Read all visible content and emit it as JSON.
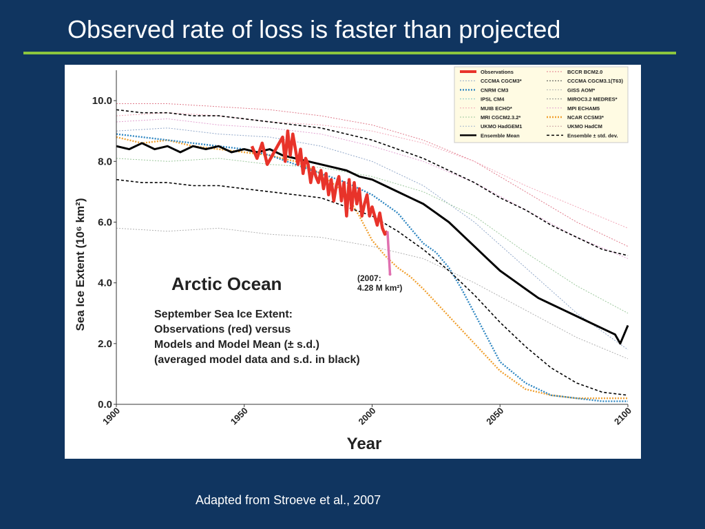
{
  "slide": {
    "title": "Observed rate of loss is faster than projected",
    "credit": "Adapted from Stroeve et al., 2007",
    "colors": {
      "background": "#103560",
      "rule": "#8cc63f",
      "text": "#ffffff"
    }
  },
  "chart_data": {
    "type": "line",
    "title": "Arctic Ocean",
    "xlabel": "Year",
    "ylabel": "Sea Ice Extent (10⁶ km²)",
    "xlim": [
      1900,
      2100
    ],
    "ylim": [
      0,
      11
    ],
    "x_ticks": [
      "1900",
      "1950",
      "2000",
      "2050",
      "2100"
    ],
    "y_ticks": [
      "0.0",
      "2.0",
      "4.0",
      "6.0",
      "8.0",
      "10.0"
    ],
    "grid": false,
    "legend_position": "top-right",
    "annotations": {
      "subtitle_lines": [
        "September Sea Ice Extent:",
        "Observations (red) versus",
        "Models and Model Mean (± s.d.)",
        "(averaged model data and s.d. in black)"
      ],
      "point_label_lines": [
        "(2007:",
        "4.28 M km²)"
      ],
      "point": {
        "x": 2007,
        "y": 4.28
      }
    },
    "legend": [
      {
        "name": "Observations",
        "color": "#e8332a"
      },
      {
        "name": "BCCR BCM2.0",
        "color": "#e07a8a"
      },
      {
        "name": "CCCMA CGCM3*",
        "color": "#8fa6c8"
      },
      {
        "name": "CCCMA CGCM3.1(T63)",
        "color": "#444444"
      },
      {
        "name": "CNRM CM3",
        "color": "#2e86c1"
      },
      {
        "name": "GISS AOM*",
        "color": "#b0b0b0"
      },
      {
        "name": "IPSL CM4",
        "color": "#7ec8c8"
      },
      {
        "name": "MIROC3.2 MEDRES*",
        "color": "#8a8a8a"
      },
      {
        "name": "MUIB ECHO*",
        "color": "#f2a7b8"
      },
      {
        "name": "MPI ECHAM5",
        "color": "#e2a1d0"
      },
      {
        "name": "MRI CGCM2.3.2*",
        "color": "#9bc79b"
      },
      {
        "name": "NCAR CCSM3*",
        "color": "#f0a030"
      },
      {
        "name": "UKMO HadGEM1",
        "color": "#a0b4d0"
      },
      {
        "name": "UKMO HadCM",
        "color": "#c8a0a0"
      },
      {
        "name": "Ensemble Mean",
        "color": "#000000"
      },
      {
        "name": "Ensemble ± std. dev.",
        "color": "#000000"
      }
    ],
    "series": [
      {
        "name": "Observations",
        "color": "#e8332a",
        "x": [
          1953,
          1955,
          1957,
          1959,
          1961,
          1963,
          1965,
          1966,
          1967,
          1968,
          1969,
          1970,
          1971,
          1972,
          1973,
          1974,
          1975,
          1976,
          1977,
          1978,
          1979,
          1980,
          1981,
          1982,
          1983,
          1984,
          1985,
          1986,
          1987,
          1988,
          1989,
          1990,
          1991,
          1992,
          1993,
          1994,
          1995,
          1996,
          1997,
          1998,
          1999,
          2000,
          2001,
          2002,
          2003,
          2004,
          2005,
          2006
        ],
        "y": [
          8.5,
          8.1,
          8.6,
          7.9,
          8.2,
          8.5,
          8.8,
          8.0,
          9.0,
          8.2,
          8.9,
          8.4,
          7.9,
          8.4,
          7.6,
          8.1,
          7.9,
          7.3,
          7.8,
          7.5,
          7.3,
          7.7,
          7.1,
          7.6,
          6.9,
          7.4,
          6.7,
          7.2,
          7.5,
          6.7,
          7.3,
          6.2,
          7.4,
          6.4,
          7.3,
          6.6,
          7.1,
          6.2,
          6.6,
          6.9,
          6.2,
          6.5,
          6.2,
          5.9,
          6.3,
          5.8,
          5.6,
          5.7
        ]
      },
      {
        "name": "Observations (2007)",
        "color": "#e070b0",
        "x": [
          2006,
          2007
        ],
        "y": [
          5.7,
          4.28
        ]
      },
      {
        "name": "Ensemble Mean",
        "color": "#000000",
        "x": [
          1900,
          1905,
          1910,
          1915,
          1920,
          1925,
          1930,
          1935,
          1940,
          1945,
          1950,
          1955,
          1960,
          1965,
          1970,
          1975,
          1980,
          1985,
          1990,
          1995,
          2000,
          2005,
          2010,
          2015,
          2020,
          2025,
          2030,
          2035,
          2040,
          2045,
          2050,
          2055,
          2060,
          2065,
          2070,
          2075,
          2080,
          2085,
          2090,
          2095,
          2097,
          2100
        ],
        "y": [
          8.5,
          8.4,
          8.6,
          8.4,
          8.5,
          8.3,
          8.5,
          8.4,
          8.5,
          8.3,
          8.4,
          8.3,
          8.4,
          8.2,
          8.1,
          8.0,
          7.9,
          7.8,
          7.7,
          7.5,
          7.4,
          7.2,
          7.0,
          6.8,
          6.6,
          6.3,
          6.0,
          5.6,
          5.2,
          4.8,
          4.4,
          4.1,
          3.8,
          3.5,
          3.3,
          3.1,
          2.9,
          2.7,
          2.5,
          2.3,
          2.0,
          2.6
        ]
      },
      {
        "name": "Ensemble + std. dev.",
        "color": "#000000",
        "x": [
          1900,
          1910,
          1920,
          1930,
          1940,
          1950,
          1960,
          1970,
          1980,
          1990,
          2000,
          2010,
          2020,
          2030,
          2040,
          2050,
          2060,
          2070,
          2080,
          2090,
          2100
        ],
        "y": [
          9.7,
          9.6,
          9.6,
          9.5,
          9.5,
          9.4,
          9.3,
          9.2,
          9.1,
          8.9,
          8.7,
          8.4,
          8.1,
          7.7,
          7.3,
          6.8,
          6.4,
          5.9,
          5.5,
          5.1,
          4.9
        ]
      },
      {
        "name": "Ensemble − std. dev.",
        "color": "#000000",
        "x": [
          1900,
          1910,
          1920,
          1930,
          1940,
          1950,
          1960,
          1970,
          1980,
          1990,
          2000,
          2010,
          2020,
          2030,
          2040,
          2050,
          2060,
          2070,
          2080,
          2090,
          2100
        ],
        "y": [
          7.4,
          7.3,
          7.3,
          7.2,
          7.2,
          7.1,
          7.0,
          6.9,
          6.8,
          6.5,
          6.2,
          5.7,
          5.1,
          4.4,
          3.6,
          2.7,
          1.9,
          1.2,
          0.7,
          0.4,
          0.3
        ]
      },
      {
        "name": "NCAR CCSM3*",
        "color": "#f0a030",
        "x": [
          1900,
          1910,
          1920,
          1930,
          1940,
          1950,
          1960,
          1970,
          1980,
          1990,
          1995,
          2000,
          2005,
          2010,
          2015,
          2020,
          2030,
          2040,
          2050,
          2060,
          2070,
          2080,
          2090,
          2100
        ],
        "y": [
          8.8,
          8.6,
          8.7,
          8.5,
          8.4,
          8.3,
          8.2,
          8.0,
          7.6,
          6.9,
          6.2,
          5.4,
          4.9,
          4.5,
          4.2,
          3.8,
          2.9,
          2.0,
          1.1,
          0.5,
          0.3,
          0.2,
          0.2,
          0.2
        ]
      },
      {
        "name": "CNRM CM3",
        "color": "#2e86c1",
        "x": [
          1900,
          1910,
          1920,
          1930,
          1940,
          1950,
          1960,
          1970,
          1980,
          1990,
          2000,
          2005,
          2010,
          2015,
          2020,
          2025,
          2030,
          2035,
          2040,
          2045,
          2050,
          2060,
          2070,
          2080,
          2090,
          2100
        ],
        "y": [
          8.9,
          8.8,
          8.7,
          8.6,
          8.5,
          8.4,
          8.2,
          7.9,
          7.6,
          7.3,
          6.9,
          6.6,
          6.3,
          5.8,
          5.3,
          5.0,
          4.5,
          3.8,
          3.0,
          2.2,
          1.4,
          0.7,
          0.3,
          0.2,
          0.1,
          0.1
        ]
      },
      {
        "name": "BCCR BCM2.0",
        "color": "#e07a8a",
        "x": [
          1900,
          1920,
          1940,
          1960,
          1980,
          2000,
          2020,
          2040,
          2060,
          2080,
          2100
        ],
        "y": [
          9.9,
          9.9,
          9.8,
          9.7,
          9.5,
          9.2,
          8.7,
          8.0,
          7.0,
          6.0,
          5.2
        ]
      },
      {
        "name": "MPI ECHAM5",
        "color": "#e2a1d0",
        "x": [
          1900,
          1920,
          1940,
          1960,
          1980,
          2000,
          2020,
          2040,
          2060,
          2080,
          2100
        ],
        "y": [
          9.3,
          9.4,
          9.2,
          9.1,
          8.9,
          8.5,
          8.0,
          7.3,
          6.4,
          5.5,
          4.8
        ]
      },
      {
        "name": "CCCMA CGCM3*",
        "color": "#8fa6c8",
        "x": [
          1900,
          1920,
          1940,
          1960,
          1980,
          2000,
          2020,
          2040,
          2060,
          2080,
          2100
        ],
        "y": [
          9.0,
          9.1,
          8.9,
          8.8,
          8.5,
          8.0,
          7.2,
          6.0,
          4.5,
          3.0,
          1.8
        ]
      },
      {
        "name": "GISS AOM*",
        "color": "#b0b0b0",
        "x": [
          1900,
          1920,
          1940,
          1960,
          1980,
          2000,
          2020,
          2040,
          2060,
          2080,
          2100
        ],
        "y": [
          5.8,
          5.7,
          5.8,
          5.6,
          5.5,
          5.2,
          4.8,
          4.0,
          3.1,
          2.2,
          1.5
        ]
      },
      {
        "name": "MRI CGCM2.3.2*",
        "color": "#9bc79b",
        "x": [
          1900,
          1920,
          1940,
          1960,
          1980,
          2000,
          2020,
          2040,
          2060,
          2080,
          2100
        ],
        "y": [
          8.1,
          8.0,
          8.1,
          7.9,
          7.8,
          7.5,
          7.0,
          6.2,
          5.0,
          3.9,
          3.0
        ]
      },
      {
        "name": "MUIB ECHO*",
        "color": "#f2a7b8",
        "x": [
          1900,
          1920,
          1940,
          1960,
          1980,
          2000,
          2020,
          2040,
          2060,
          2080,
          2100
        ],
        "y": [
          9.5,
          9.6,
          9.5,
          9.3,
          9.2,
          9.0,
          8.6,
          8.0,
          7.2,
          6.5,
          5.8
        ]
      }
    ]
  }
}
